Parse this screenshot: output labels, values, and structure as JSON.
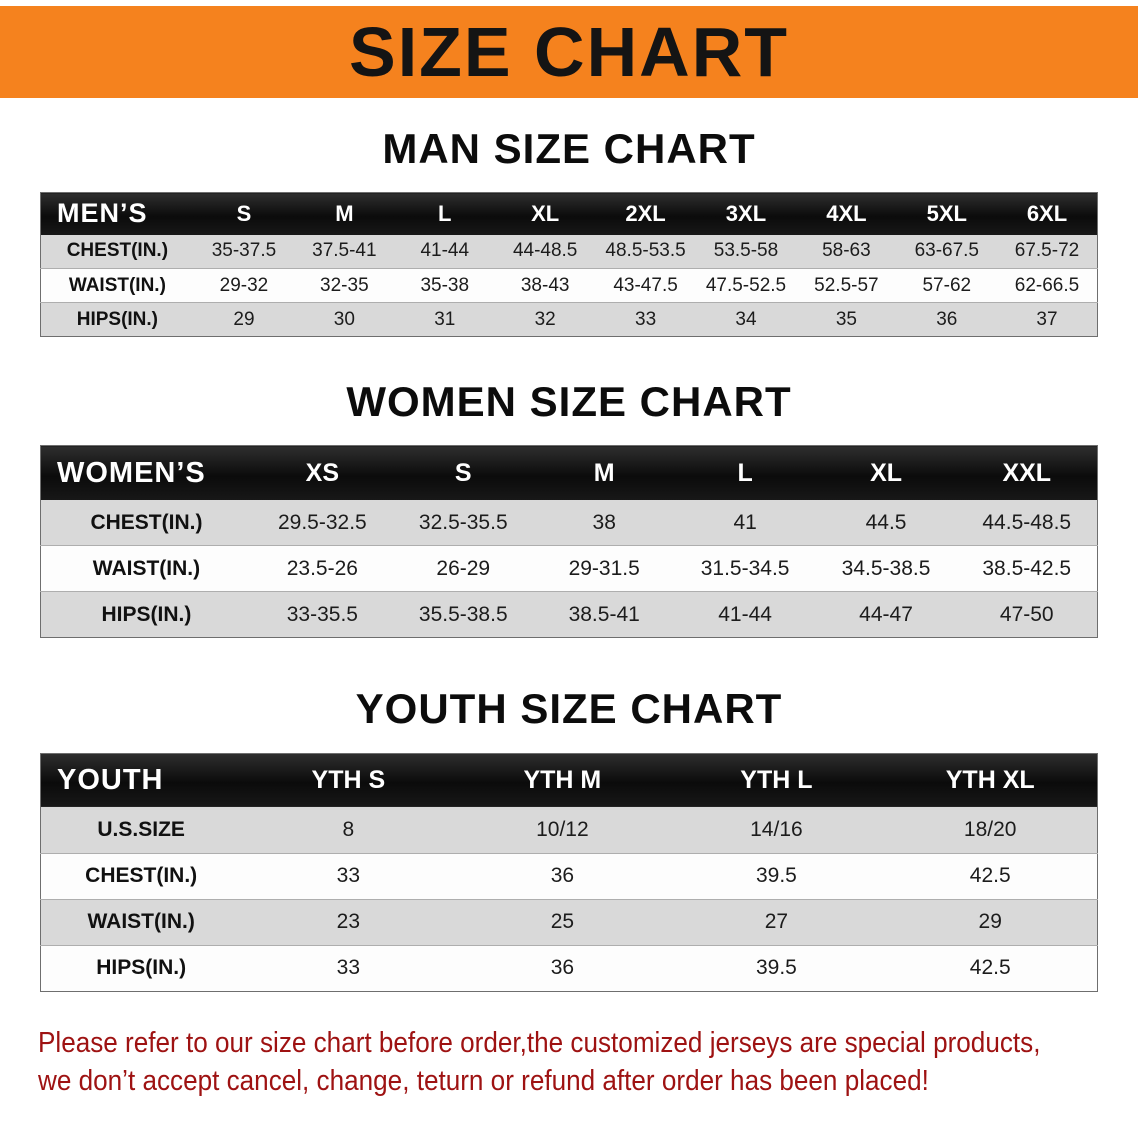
{
  "banner": {
    "title": "SIZE CHART",
    "background_color": "#F5821E",
    "text_color": "#141414"
  },
  "sections": [
    {
      "heading": "MAN SIZE CHART",
      "table": {
        "header": [
          "MEN’S",
          "S",
          "M",
          "L",
          "XL",
          "2XL",
          "3XL",
          "4XL",
          "5XL",
          "6XL"
        ],
        "rows": [
          [
            "CHEST(IN.)",
            "35-37.5",
            "37.5-41",
            "41-44",
            "44-48.5",
            "48.5-53.5",
            "53.5-58",
            "58-63",
            "63-67.5",
            "67.5-72"
          ],
          [
            "WAIST(IN.)",
            "29-32",
            "32-35",
            "35-38",
            "38-43",
            "43-47.5",
            "47.5-52.5",
            "52.5-57",
            "57-62",
            "62-66.5"
          ],
          [
            "HIPS(IN.)",
            "29",
            "30",
            "31",
            "32",
            "33",
            "34",
            "35",
            "36",
            "37"
          ]
        ]
      }
    },
    {
      "heading": "WOMEN SIZE CHART",
      "table": {
        "header": [
          "WOMEN’S",
          "XS",
          "S",
          "M",
          "L",
          "XL",
          "XXL"
        ],
        "rows": [
          [
            "CHEST(IN.)",
            "29.5-32.5",
            "32.5-35.5",
            "38",
            "41",
            "44.5",
            "44.5-48.5"
          ],
          [
            "WAIST(IN.)",
            "23.5-26",
            "26-29",
            "29-31.5",
            "31.5-34.5",
            "34.5-38.5",
            "38.5-42.5"
          ],
          [
            "HIPS(IN.)",
            "33-35.5",
            "35.5-38.5",
            "38.5-41",
            "41-44",
            "44-47",
            "47-50"
          ]
        ]
      }
    },
    {
      "heading": "YOUTH SIZE CHART",
      "table": {
        "header": [
          "YOUTH",
          "YTH S",
          "YTH M",
          "YTH L",
          "YTH XL"
        ],
        "rows": [
          [
            "U.S.SIZE",
            "8",
            "10/12",
            "14/16",
            "18/20"
          ],
          [
            "CHEST(IN.)",
            "33",
            "36",
            "39.5",
            "42.5"
          ],
          [
            "WAIST(IN.)",
            "23",
            "25",
            "27",
            "29"
          ],
          [
            "HIPS(IN.)",
            "33",
            "36",
            "39.5",
            "42.5"
          ]
        ]
      }
    }
  ],
  "footer": {
    "lines": [
      "Please refer to our size chart before order,the customized jerseys are special products,",
      "we don’t accept cancel, change, teturn or refund after order has been placed!"
    ],
    "text_color": "#9E1212"
  },
  "colors": {
    "banner_orange": "#F5821E",
    "table_header_bg": "#141414",
    "row_stripe_gray": "#D9D9D9",
    "disclaimer_red": "#9E1212"
  }
}
